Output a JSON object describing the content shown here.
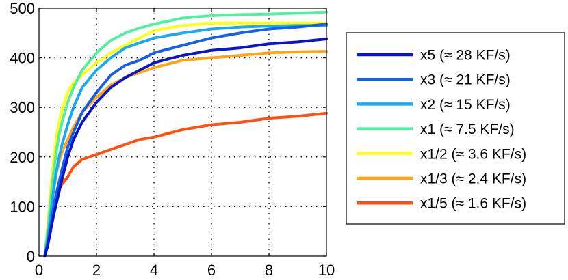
{
  "chart_data": {
    "type": "line",
    "title": "",
    "xlabel": "",
    "ylabel": "",
    "xlim": [
      0,
      10
    ],
    "ylim": [
      0,
      500
    ],
    "xticks": [
      0,
      2,
      4,
      6,
      8,
      10
    ],
    "yticks": [
      0,
      100,
      200,
      300,
      400,
      500
    ],
    "grid": true,
    "legend_position": "right",
    "series": [
      {
        "name": "x5 (≈ 28 KF/s)",
        "color": "#0a14c8",
        "x": [
          0.2,
          0.3,
          0.4,
          0.5,
          0.6,
          0.7,
          0.8,
          1.0,
          1.2,
          1.5,
          2.0,
          2.5,
          3.0,
          3.5,
          4.0,
          5.0,
          6.0,
          7.0,
          8.0,
          9.0,
          10.0
        ],
        "y": [
          0,
          20,
          50,
          80,
          105,
          130,
          155,
          200,
          235,
          270,
          310,
          340,
          360,
          375,
          390,
          405,
          415,
          420,
          428,
          432,
          438
        ]
      },
      {
        "name": "x3 (≈ 21 KF/s)",
        "color": "#1560e6",
        "x": [
          0.2,
          0.3,
          0.4,
          0.5,
          0.6,
          0.7,
          0.8,
          1.0,
          1.2,
          1.5,
          2.0,
          2.5,
          3.0,
          3.5,
          4.0,
          5.0,
          6.0,
          7.0,
          8.0,
          9.0,
          10.0
        ],
        "y": [
          0,
          25,
          60,
          95,
          125,
          150,
          175,
          220,
          250,
          290,
          330,
          365,
          385,
          395,
          410,
          425,
          440,
          450,
          458,
          462,
          468
        ]
      },
      {
        "name": "x2 (≈ 15 KF/s)",
        "color": "#1aa8f0",
        "x": [
          0.2,
          0.3,
          0.4,
          0.5,
          0.6,
          0.7,
          0.8,
          1.0,
          1.2,
          1.5,
          2.0,
          2.5,
          3.0,
          3.5,
          4.0,
          5.0,
          6.0,
          7.0,
          8.0,
          9.0,
          10.0
        ],
        "y": [
          0,
          35,
          80,
          130,
          170,
          200,
          225,
          265,
          300,
          340,
          375,
          400,
          420,
          430,
          440,
          450,
          458,
          462,
          464,
          465,
          465
        ]
      },
      {
        "name": "x1 (≈ 7.5 KF/s)",
        "color": "#55eea0",
        "x": [
          0.2,
          0.3,
          0.4,
          0.5,
          0.6,
          0.7,
          0.8,
          1.0,
          1.2,
          1.5,
          2.0,
          2.5,
          3.0,
          3.5,
          4.0,
          5.0,
          6.0,
          7.0,
          8.0,
          9.0,
          10.0
        ],
        "y": [
          0,
          50,
          110,
          165,
          210,
          245,
          270,
          310,
          340,
          375,
          410,
          435,
          450,
          460,
          468,
          480,
          485,
          487,
          488,
          490,
          492
        ]
      },
      {
        "name": "x1/2 (≈ 3.6 KF/s)",
        "color": "#ffff14",
        "x": [
          0.2,
          0.3,
          0.4,
          0.5,
          0.6,
          0.7,
          0.8,
          1.0,
          1.2,
          1.5,
          2.0,
          2.5,
          3.0,
          3.5,
          4.0,
          5.0,
          6.0,
          7.0,
          8.0,
          9.0,
          10.0
        ],
        "y": [
          0,
          60,
          130,
          190,
          240,
          270,
          295,
          330,
          350,
          365,
          390,
          410,
          425,
          440,
          455,
          465,
          470,
          470,
          470,
          470,
          470
        ]
      },
      {
        "name": "x1/3 (≈ 2.4 KF/s)",
        "color": "#ffa514",
        "x": [
          0.2,
          0.3,
          0.4,
          0.5,
          0.6,
          0.7,
          0.8,
          1.0,
          1.2,
          1.5,
          2.0,
          2.5,
          3.0,
          3.5,
          4.0,
          5.0,
          6.0,
          7.0,
          8.0,
          9.0,
          10.0
        ],
        "y": [
          0,
          30,
          80,
          130,
          165,
          190,
          210,
          235,
          260,
          290,
          320,
          345,
          360,
          370,
          380,
          395,
          400,
          405,
          410,
          412,
          413
        ]
      },
      {
        "name": "x1/5 (≈ 1.6 KF/s)",
        "color": "#ff5014",
        "x": [
          0.2,
          0.3,
          0.4,
          0.5,
          0.6,
          0.7,
          0.8,
          1.0,
          1.2,
          1.5,
          2.0,
          2.5,
          3.0,
          3.5,
          4.0,
          5.0,
          6.0,
          7.0,
          8.0,
          9.0,
          10.0
        ],
        "y": [
          0,
          40,
          80,
          105,
          120,
          135,
          145,
          160,
          180,
          195,
          205,
          215,
          225,
          235,
          240,
          255,
          265,
          270,
          278,
          282,
          288
        ]
      }
    ]
  }
}
